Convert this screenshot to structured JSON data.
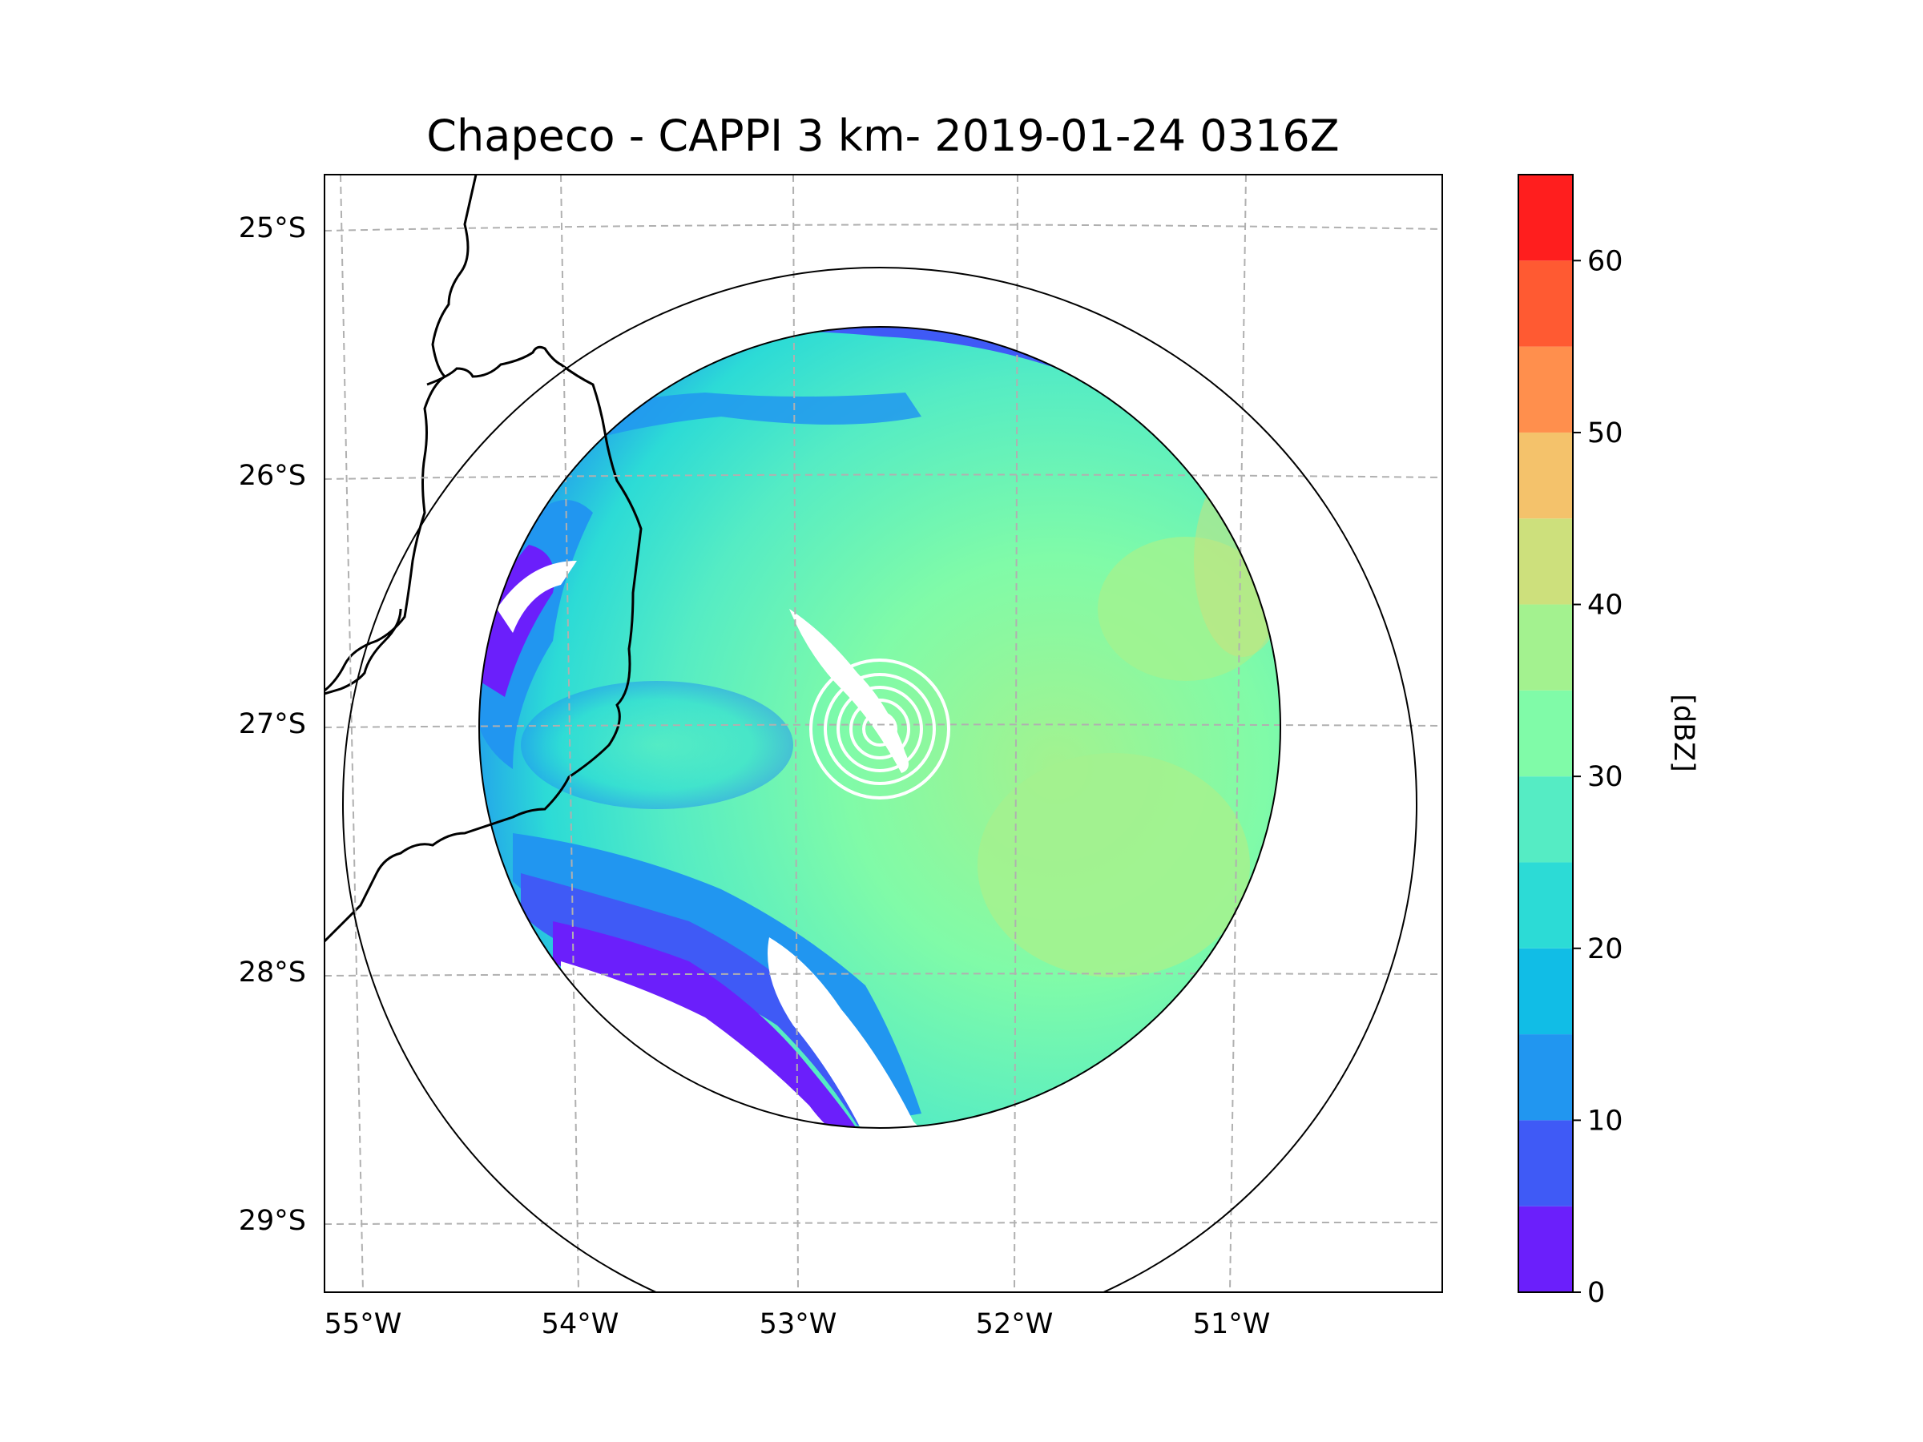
{
  "title": "Chapeco - CAPPI 3 km- 2019-01-24 0316Z",
  "map": {
    "lon_labels": [
      "55°W",
      "54°W",
      "53°W",
      "52°W",
      "51°W"
    ],
    "lat_labels": [
      "25°S",
      "26°S",
      "27°S",
      "28°S",
      "29°S"
    ],
    "gridline_color": "#b0b0b0",
    "border_color": "#000000"
  },
  "radar": {
    "site": "Chapeco",
    "product": "CAPPI 3 km",
    "range_rings": [
      "inner range ring",
      "outer range ring"
    ]
  },
  "colorbar": {
    "label": "[dBZ]",
    "ticks": [
      "0",
      "10",
      "20",
      "30",
      "40",
      "50",
      "60"
    ],
    "bins": [
      {
        "from": 0,
        "to": 5,
        "color": "#6b1ffb"
      },
      {
        "from": 5,
        "to": 10,
        "color": "#3f5af6"
      },
      {
        "from": 10,
        "to": 15,
        "color": "#2196f0"
      },
      {
        "from": 15,
        "to": 20,
        "color": "#11bde6"
      },
      {
        "from": 20,
        "to": 25,
        "color": "#2cdbd6"
      },
      {
        "from": 25,
        "to": 30,
        "color": "#55ecc4"
      },
      {
        "from": 30,
        "to": 35,
        "color": "#80fba8"
      },
      {
        "from": 35,
        "to": 40,
        "color": "#a3f28f"
      },
      {
        "from": 40,
        "to": 45,
        "color": "#cde07c"
      },
      {
        "from": 45,
        "to": 50,
        "color": "#f4c26b"
      },
      {
        "from": 50,
        "to": 55,
        "color": "#ff8f4d"
      },
      {
        "from": 55,
        "to": 60,
        "color": "#ff5a32"
      },
      {
        "from": 60,
        "to": 65,
        "color": "#ff1e1e"
      }
    ]
  }
}
